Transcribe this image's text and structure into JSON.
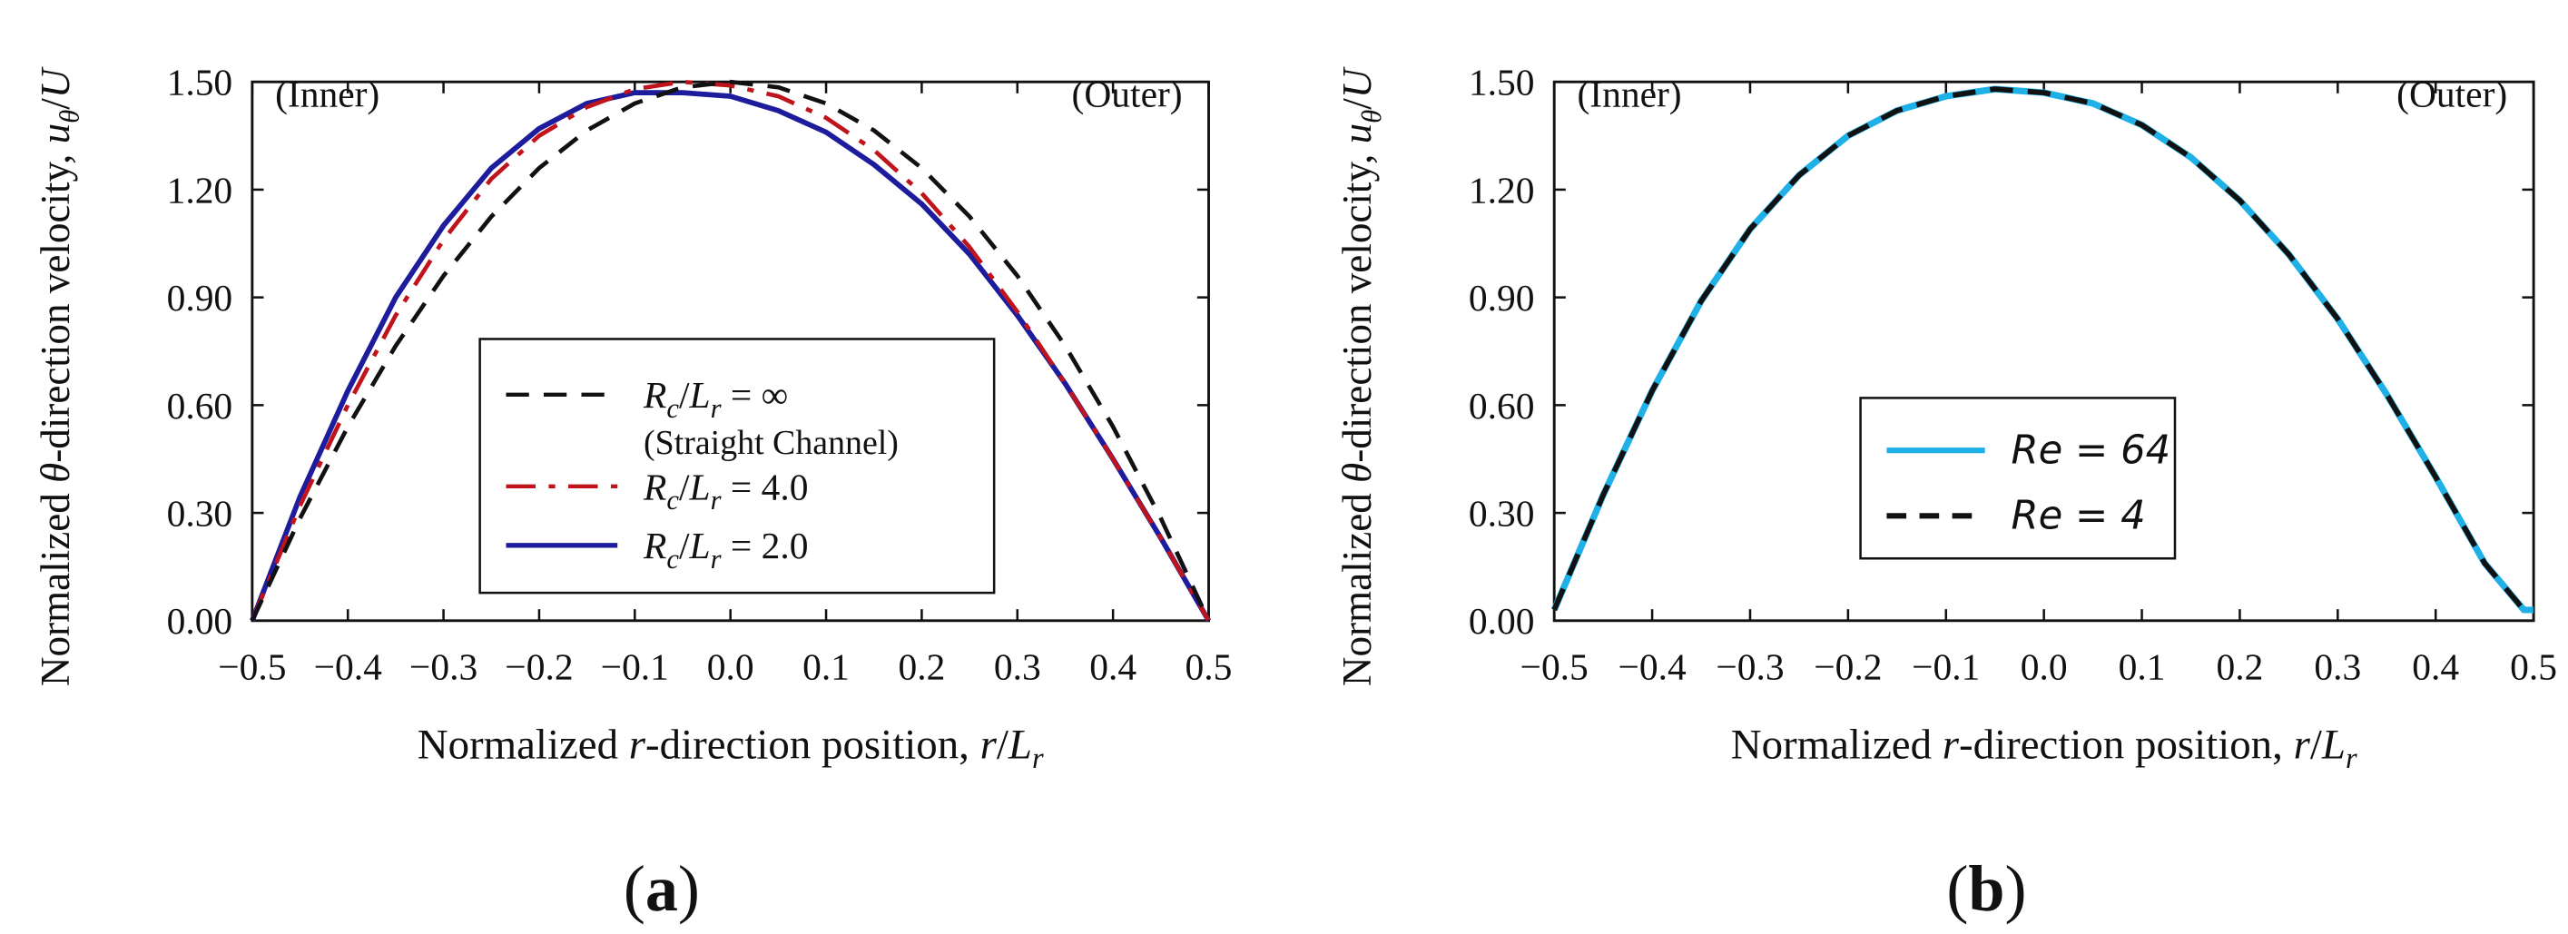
{
  "chart_data": [
    {
      "panel": "a",
      "type": "line",
      "caption_letter": "a",
      "title": "",
      "xlabel": "Normalized r-direction position, r/L_r",
      "xlabel_parts": {
        "prefix": "Normalized ",
        "var": "r",
        "mid": "-direction position, ",
        "frac_num": "r",
        "slash": "/",
        "frac_den": "L",
        "frac_sub": "r"
      },
      "ylabel": "Normalized θ-direction velocity, u_θ/U",
      "ylabel_parts": {
        "prefix": "Normalized ",
        "var": "θ",
        "mid": "-direction velocity, ",
        "frac_num": "u",
        "frac_num_sub": "θ",
        "slash": "/",
        "frac_den": "U"
      },
      "xlim": [
        -0.5,
        0.5
      ],
      "ylim": [
        0.0,
        1.5
      ],
      "x_ticks": [
        "−0.5",
        "−0.4",
        "−0.3",
        "−0.2",
        "−0.1",
        "0.0",
        "0.1",
        "0.2",
        "0.3",
        "0.4",
        "0.5"
      ],
      "y_ticks": [
        "0.00",
        "0.30",
        "0.60",
        "0.90",
        "1.20",
        "1.50"
      ],
      "annotations": {
        "left": "(Inner)",
        "right": "(Outer)"
      },
      "x": [
        -0.5,
        -0.45,
        -0.4,
        -0.35,
        -0.3,
        -0.25,
        -0.2,
        -0.15,
        -0.1,
        -0.05,
        0.0,
        0.05,
        0.1,
        0.15,
        0.2,
        0.25,
        0.3,
        0.35,
        0.4,
        0.45,
        0.5
      ],
      "series": [
        {
          "name": "R_c/L_r = ∞ (Straight Channel)",
          "legend_var": "R",
          "legend_sub": "c",
          "legend_slash": "/",
          "legend_den": "L",
          "legend_den_sub": "r",
          "legend_eq": " = ∞",
          "legend_line2": "(Straight Channel)",
          "color": "#111111",
          "style": "dashed",
          "values": [
            0.0,
            0.285,
            0.54,
            0.765,
            0.96,
            1.125,
            1.26,
            1.365,
            1.44,
            1.485,
            1.5,
            1.485,
            1.44,
            1.365,
            1.26,
            1.125,
            0.96,
            0.765,
            0.54,
            0.285,
            0.0
          ]
        },
        {
          "name": "R_c/L_r = 4.0",
          "legend_var": "R",
          "legend_sub": "c",
          "legend_slash": "/",
          "legend_den": "L",
          "legend_den_sub": "r",
          "legend_eq": " = 4.0",
          "color": "#c0141c",
          "style": "dashdot",
          "values": [
            0.0,
            0.32,
            0.6,
            0.85,
            1.06,
            1.23,
            1.35,
            1.43,
            1.48,
            1.5,
            1.49,
            1.46,
            1.4,
            1.31,
            1.19,
            1.04,
            0.86,
            0.66,
            0.45,
            0.23,
            0.0
          ]
        },
        {
          "name": "R_c/L_r = 2.0",
          "legend_var": "R",
          "legend_sub": "c",
          "legend_slash": "/",
          "legend_den": "L",
          "legend_den_sub": "r",
          "legend_eq": " = 2.0",
          "color": "#1c1c9c",
          "style": "solid",
          "values": [
            0.0,
            0.345,
            0.64,
            0.9,
            1.1,
            1.26,
            1.37,
            1.44,
            1.47,
            1.47,
            1.46,
            1.42,
            1.36,
            1.27,
            1.16,
            1.02,
            0.85,
            0.66,
            0.45,
            0.23,
            0.0
          ]
        }
      ]
    },
    {
      "panel": "b",
      "type": "line",
      "caption_letter": "b",
      "title": "",
      "xlabel": "Normalized r-direction position, r/L_r",
      "xlabel_parts": {
        "prefix": "Normalized ",
        "var": "r",
        "mid": "-direction position, ",
        "frac_num": "r",
        "slash": "/",
        "frac_den": "L",
        "frac_sub": "r"
      },
      "ylabel": "Normalized θ-direction velocity, u_θ/U",
      "ylabel_parts": {
        "prefix": "Normalized ",
        "var": "θ",
        "mid": "-direction velocity, ",
        "frac_num": "u",
        "frac_num_sub": "θ",
        "slash": "/",
        "frac_den": "U"
      },
      "xlim": [
        -0.5,
        0.5
      ],
      "ylim": [
        0.0,
        1.5
      ],
      "x_ticks": [
        "−0.5",
        "−0.4",
        "−0.3",
        "−0.2",
        "−0.1",
        "0.0",
        "0.1",
        "0.2",
        "0.3",
        "0.4",
        "0.5"
      ],
      "y_ticks": [
        "0.00",
        "0.30",
        "0.60",
        "0.90",
        "1.20",
        "1.50"
      ],
      "annotations": {
        "left": "(Inner)",
        "right": "(Outer)"
      },
      "x": [
        -0.5,
        -0.45,
        -0.4,
        -0.35,
        -0.3,
        -0.25,
        -0.2,
        -0.15,
        -0.1,
        -0.05,
        0.0,
        0.05,
        0.1,
        0.15,
        0.2,
        0.25,
        0.3,
        0.35,
        0.4,
        0.45,
        0.49,
        0.5
      ],
      "series": [
        {
          "name": "Re = 64",
          "legend_text": "Re = 64",
          "color": "#1eb0e6",
          "style": "solid",
          "values": [
            0.03,
            0.35,
            0.64,
            0.89,
            1.09,
            1.24,
            1.35,
            1.42,
            1.46,
            1.48,
            1.47,
            1.44,
            1.38,
            1.29,
            1.17,
            1.02,
            0.84,
            0.63,
            0.4,
            0.16,
            0.03,
            0.03
          ]
        },
        {
          "name": "Re = 4",
          "legend_text": "Re = 4",
          "color": "#111111",
          "style": "dashed",
          "values": [
            0.03,
            0.35,
            0.64,
            0.89,
            1.09,
            1.24,
            1.35,
            1.42,
            1.46,
            1.48,
            1.47,
            1.44,
            1.38,
            1.29,
            1.17,
            1.02,
            0.84,
            0.63,
            0.4,
            0.16,
            0.03,
            0.03
          ]
        }
      ]
    }
  ]
}
